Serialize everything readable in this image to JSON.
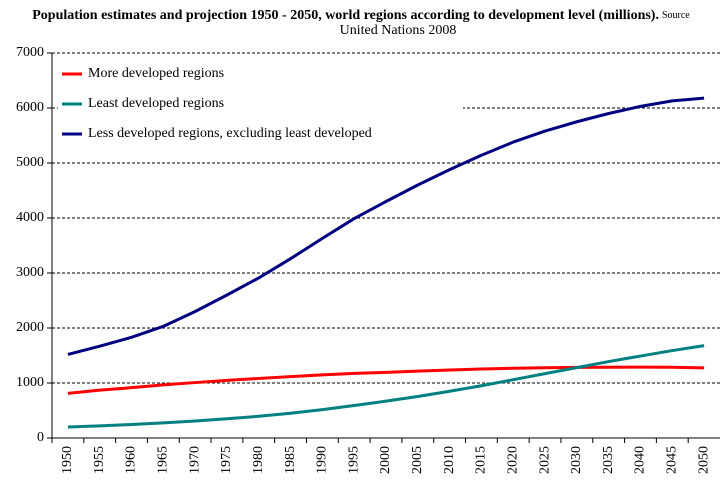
{
  "chart_data": {
    "type": "line",
    "title": "Population estimates and projection 1950 - 2050, world regions according to development level (millions).",
    "source_lines": [
      "Source",
      "United Nations 2008"
    ],
    "categories": [
      "1950",
      "1955",
      "1960",
      "1965",
      "1970",
      "1975",
      "1980",
      "1985",
      "1990",
      "1995",
      "2000",
      "2005",
      "2010",
      "2015",
      "2020",
      "2025",
      "2030",
      "2035",
      "2040",
      "2045",
      "2050"
    ],
    "series": [
      {
        "name": "More developed regions",
        "color": "#ff0000",
        "values": [
          812,
          870,
          915,
          966,
          1008,
          1048,
          1083,
          1115,
          1148,
          1175,
          1194,
          1216,
          1237,
          1254,
          1268,
          1278,
          1284,
          1287,
          1288,
          1286,
          1275
        ]
      },
      {
        "name": "Least developed regions",
        "color": "#008080",
        "values": [
          200,
          220,
          245,
          275,
          310,
          350,
          395,
          450,
          515,
          590,
          670,
          755,
          850,
          950,
          1060,
          1170,
          1280,
          1390,
          1490,
          1590,
          1680
        ]
      },
      {
        "name": "Less developed regions, excluding least developed",
        "color": "#000080",
        "values": [
          1520,
          1670,
          1830,
          2030,
          2300,
          2600,
          2910,
          3260,
          3630,
          3990,
          4300,
          4600,
          4880,
          5140,
          5380,
          5580,
          5750,
          5900,
          6030,
          6130,
          6180
        ]
      }
    ],
    "ylim": [
      0,
      7000
    ],
    "yticks": [
      0,
      1000,
      2000,
      3000,
      4000,
      5000,
      6000,
      7000
    ],
    "grid": true,
    "legend": "upper left"
  }
}
